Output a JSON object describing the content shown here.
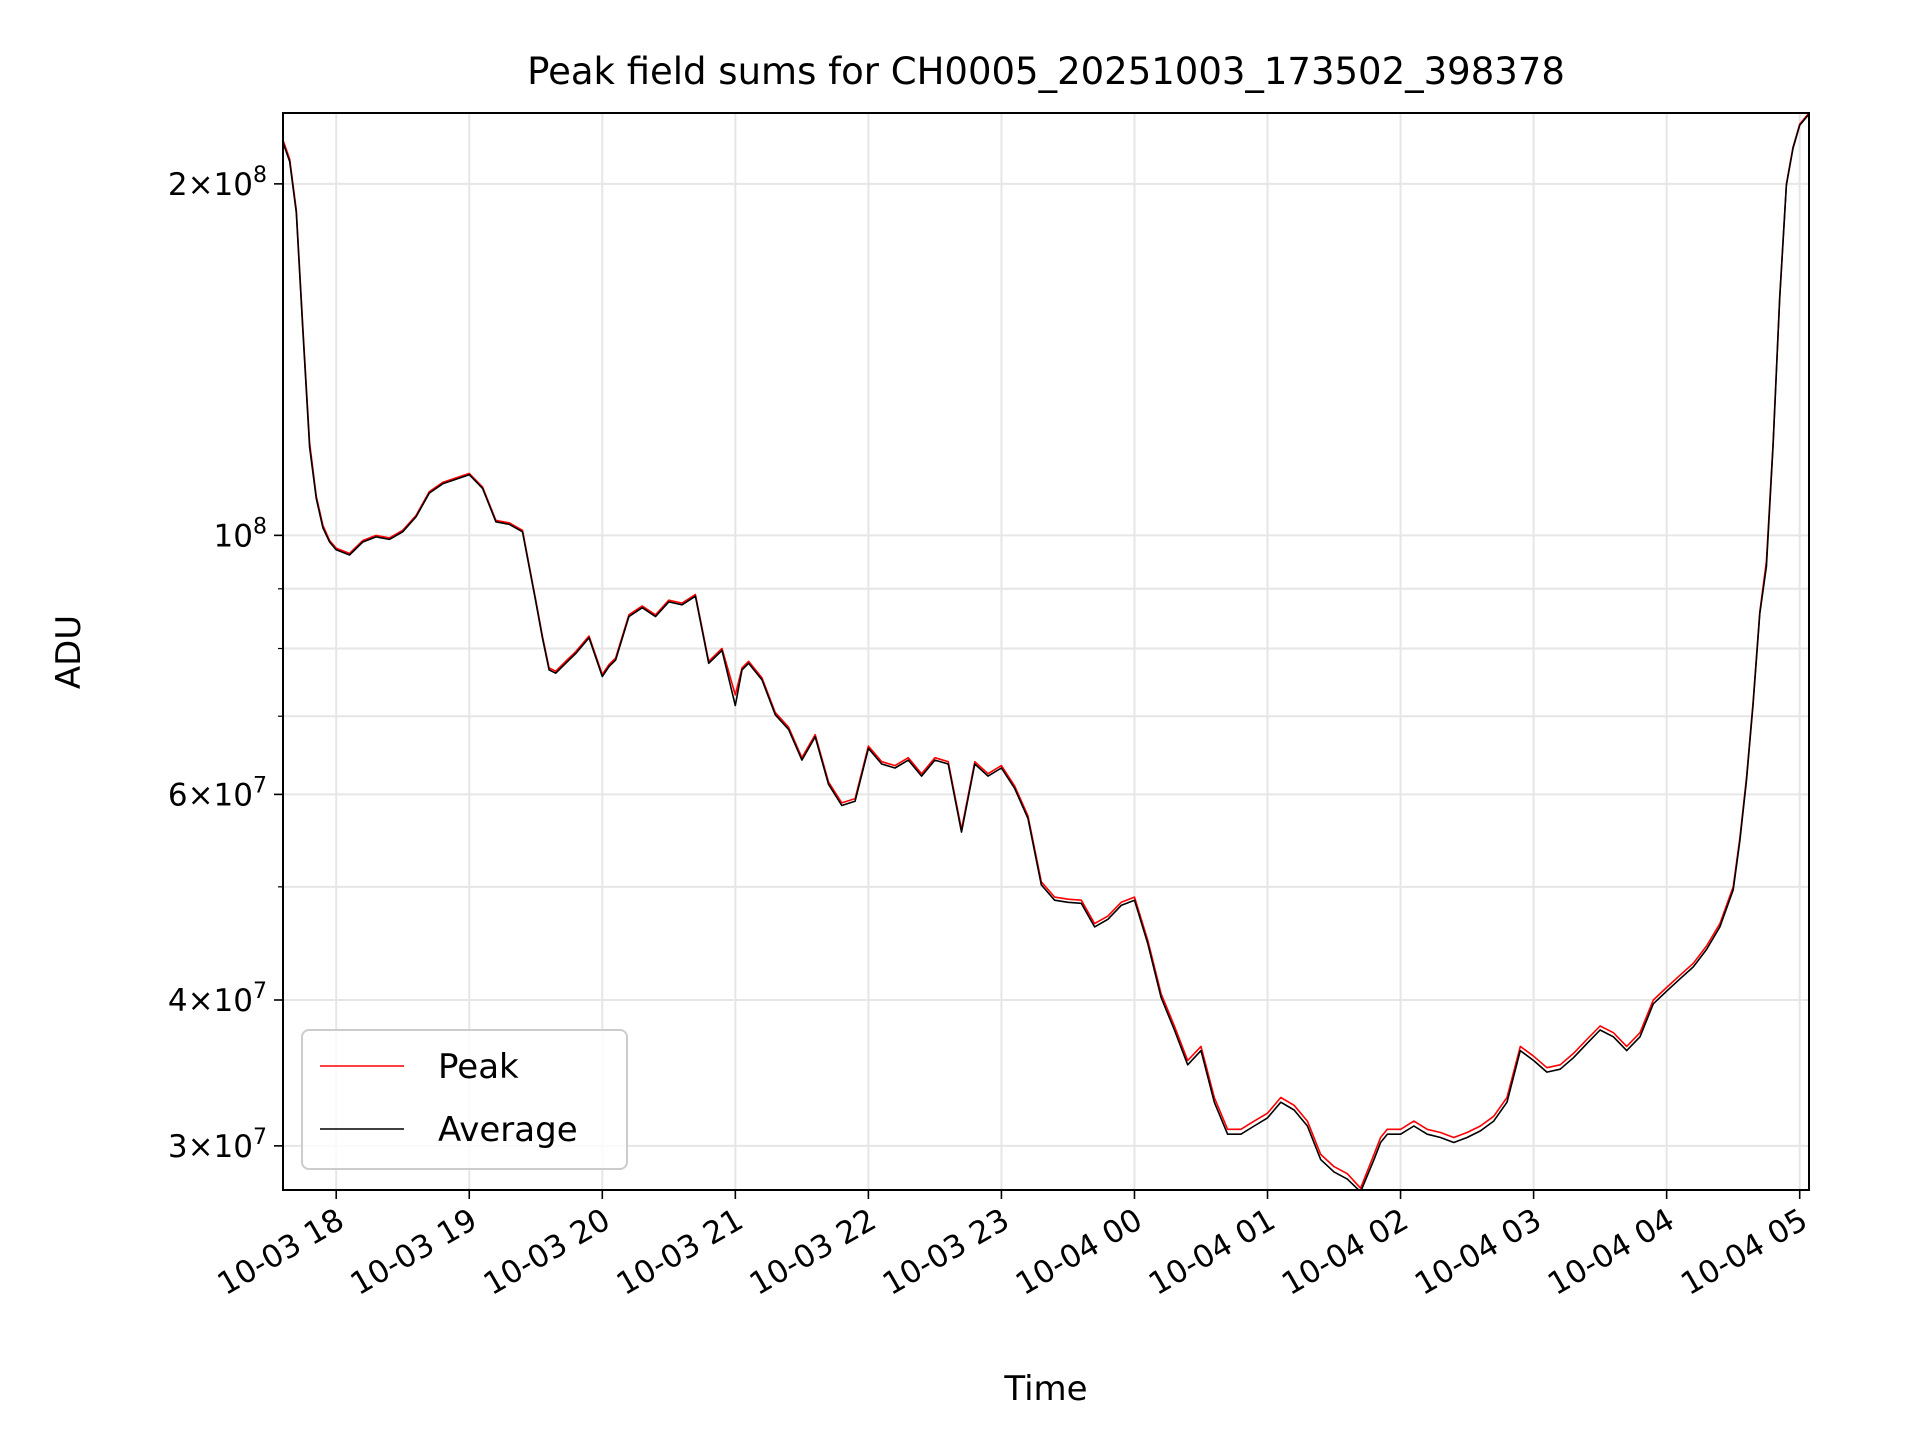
{
  "chart_data": {
    "type": "line",
    "title": "Peak field sums for CH0005_20251003_173502_398378",
    "xlabel": "Time",
    "ylabel": "ADU",
    "yscale": "log",
    "ylim": [
      27500000,
      230000000
    ],
    "xlim_hours": [
      17.6,
      29.07
    ],
    "grid": true,
    "legend_position": "lower-left",
    "colors": {
      "peak": "#ff0000",
      "average": "#000000",
      "grid": "#e6e6e6"
    },
    "x_ticks": [
      {
        "hour": 18,
        "label": "10-03 18"
      },
      {
        "hour": 19,
        "label": "10-03 19"
      },
      {
        "hour": 20,
        "label": "10-03 20"
      },
      {
        "hour": 21,
        "label": "10-03 21"
      },
      {
        "hour": 22,
        "label": "10-03 22"
      },
      {
        "hour": 23,
        "label": "10-03 23"
      },
      {
        "hour": 24,
        "label": "10-04 00"
      },
      {
        "hour": 25,
        "label": "10-04 01"
      },
      {
        "hour": 26,
        "label": "10-04 02"
      },
      {
        "hour": 27,
        "label": "10-04 03"
      },
      {
        "hour": 28,
        "label": "10-04 04"
      },
      {
        "hour": 29,
        "label": "10-04 05"
      }
    ],
    "y_major_ticks": [
      {
        "value": 30000000,
        "mantissa": "3",
        "exp": "7"
      },
      {
        "value": 40000000,
        "mantissa": "4",
        "exp": "7"
      },
      {
        "value": 60000000,
        "mantissa": "6",
        "exp": "7"
      },
      {
        "value": 100000000,
        "mantissa": "",
        "exp": "8"
      },
      {
        "value": 200000000,
        "mantissa": "2",
        "exp": "8"
      }
    ],
    "y_minor_ticks": [
      50000000,
      70000000,
      80000000,
      90000000
    ],
    "series": [
      {
        "name": "Peak",
        "x_hours": [
          17.6,
          17.65,
          17.7,
          17.75,
          17.8,
          17.85,
          17.9,
          17.95,
          18.0,
          18.1,
          18.2,
          18.3,
          18.4,
          18.5,
          18.6,
          18.7,
          18.8,
          18.9,
          19.0,
          19.1,
          19.2,
          19.3,
          19.4,
          19.5,
          19.55,
          19.6,
          19.65,
          19.7,
          19.75,
          19.8,
          19.9,
          20.0,
          20.05,
          20.1,
          20.2,
          20.3,
          20.4,
          20.5,
          20.6,
          20.7,
          20.8,
          20.9,
          21.0,
          21.05,
          21.1,
          21.2,
          21.3,
          21.4,
          21.5,
          21.6,
          21.7,
          21.8,
          21.9,
          22.0,
          22.1,
          22.2,
          22.3,
          22.4,
          22.5,
          22.6,
          22.7,
          22.8,
          22.9,
          23.0,
          23.1,
          23.2,
          23.3,
          23.4,
          23.5,
          23.6,
          23.7,
          23.8,
          23.9,
          24.0,
          24.1,
          24.2,
          24.3,
          24.4,
          24.5,
          24.6,
          24.7,
          24.8,
          24.9,
          25.0,
          25.1,
          25.2,
          25.3,
          25.4,
          25.5,
          25.6,
          25.7,
          25.8,
          25.85,
          25.9,
          26.0,
          26.1,
          26.2,
          26.3,
          26.4,
          26.5,
          26.6,
          26.7,
          26.8,
          26.9,
          27.0,
          27.1,
          27.2,
          27.3,
          27.4,
          27.5,
          27.6,
          27.7,
          27.8,
          27.9,
          28.0,
          28.1,
          28.2,
          28.3,
          28.4,
          28.5,
          28.55,
          28.6,
          28.65,
          28.7,
          28.75,
          28.8,
          28.85,
          28.9,
          28.95,
          29.0,
          29.07
        ],
        "values": [
          218000000,
          210000000,
          190000000,
          150000000,
          120000000,
          108000000,
          102000000,
          99000000,
          97500000,
          96500000,
          99000000,
          100000000,
          99500000,
          101000000,
          104000000,
          109000000,
          111000000,
          112000000,
          113000000,
          110000000,
          103000000,
          102500000,
          101000000,
          88000000,
          82000000,
          77000000,
          76500000,
          77500000,
          78500000,
          79500000,
          82000000,
          76000000,
          77500000,
          78500000,
          85500000,
          87000000,
          85500000,
          88000000,
          87500000,
          89000000,
          78000000,
          80000000,
          73000000,
          77000000,
          78000000,
          75500000,
          70500000,
          68500000,
          64500000,
          67500000,
          61500000,
          59000000,
          59500000,
          66000000,
          64000000,
          63500000,
          64500000,
          62500000,
          64500000,
          64000000,
          56000000,
          64000000,
          62500000,
          63500000,
          61000000,
          57500000,
          50500000,
          49000000,
          48800000,
          48700000,
          46500000,
          47200000,
          48500000,
          49000000,
          45000000,
          40500000,
          38000000,
          35500000,
          36500000,
          33000000,
          31000000,
          31000000,
          31500000,
          32000000,
          33000000,
          32500000,
          31500000,
          29500000,
          28800000,
          28400000,
          27600000,
          29500000,
          30500000,
          31000000,
          31000000,
          31500000,
          31000000,
          30800000,
          30500000,
          30800000,
          31200000,
          31800000,
          33000000,
          36500000,
          35800000,
          35000000,
          35200000,
          36000000,
          37000000,
          38000000,
          37500000,
          36500000,
          37500000,
          40000000,
          41000000,
          42000000,
          43000000,
          44500000,
          46500000,
          50000000,
          55000000,
          62000000,
          72000000,
          86000000,
          95000000,
          120000000,
          160000000,
          200000000,
          215000000,
          225000000,
          230000000
        ]
      },
      {
        "name": "Average",
        "x_hours": [
          17.6,
          17.65,
          17.7,
          17.75,
          17.8,
          17.85,
          17.9,
          17.95,
          18.0,
          18.1,
          18.2,
          18.3,
          18.4,
          18.5,
          18.6,
          18.7,
          18.8,
          18.9,
          19.0,
          19.1,
          19.2,
          19.3,
          19.4,
          19.5,
          19.55,
          19.6,
          19.65,
          19.7,
          19.75,
          19.8,
          19.9,
          20.0,
          20.05,
          20.1,
          20.2,
          20.3,
          20.4,
          20.5,
          20.6,
          20.7,
          20.8,
          20.9,
          21.0,
          21.05,
          21.1,
          21.2,
          21.3,
          21.4,
          21.5,
          21.6,
          21.7,
          21.8,
          21.9,
          22.0,
          22.1,
          22.2,
          22.3,
          22.4,
          22.5,
          22.6,
          22.7,
          22.8,
          22.9,
          23.0,
          23.1,
          23.2,
          23.3,
          23.4,
          23.5,
          23.6,
          23.7,
          23.8,
          23.9,
          24.0,
          24.1,
          24.2,
          24.3,
          24.4,
          24.5,
          24.6,
          24.7,
          24.8,
          24.9,
          25.0,
          25.1,
          25.2,
          25.3,
          25.4,
          25.5,
          25.6,
          25.7,
          25.8,
          25.85,
          25.9,
          26.0,
          26.1,
          26.2,
          26.3,
          26.4,
          26.5,
          26.6,
          26.7,
          26.8,
          26.9,
          27.0,
          27.1,
          27.2,
          27.3,
          27.4,
          27.5,
          27.6,
          27.7,
          27.8,
          27.9,
          28.0,
          28.1,
          28.2,
          28.3,
          28.4,
          28.5,
          28.55,
          28.6,
          28.65,
          28.7,
          28.75,
          28.8,
          28.85,
          28.9,
          28.95,
          29.0,
          29.07
        ],
        "values": [
          217000000,
          209000000,
          189000000,
          149000000,
          119000000,
          107500000,
          101500000,
          98700000,
          97200000,
          96200000,
          98700000,
          99700000,
          99200000,
          100700000,
          103700000,
          108700000,
          110700000,
          111700000,
          112700000,
          109700000,
          102700000,
          102200000,
          100700000,
          87700000,
          81700000,
          76700000,
          76200000,
          77200000,
          78200000,
          79200000,
          81700000,
          75700000,
          77200000,
          78200000,
          85200000,
          86700000,
          85200000,
          87700000,
          87200000,
          88700000,
          77700000,
          79700000,
          71500000,
          76700000,
          77700000,
          75200000,
          70200000,
          68200000,
          64200000,
          67200000,
          61200000,
          58700000,
          59200000,
          65700000,
          63700000,
          63200000,
          64200000,
          62200000,
          64200000,
          63700000,
          55700000,
          63700000,
          62200000,
          63200000,
          60700000,
          57200000,
          50200000,
          48700000,
          48500000,
          48400000,
          46200000,
          46900000,
          48200000,
          48700000,
          44700000,
          40200000,
          37700000,
          35200000,
          36200000,
          32700000,
          30700000,
          30700000,
          31200000,
          31700000,
          32700000,
          32200000,
          31200000,
          29200000,
          28500000,
          28100000,
          27400000,
          29200000,
          30200000,
          30700000,
          30700000,
          31200000,
          30700000,
          30500000,
          30200000,
          30500000,
          30900000,
          31500000,
          32700000,
          36200000,
          35500000,
          34700000,
          34900000,
          35700000,
          36700000,
          37700000,
          37200000,
          36200000,
          37200000,
          39700000,
          40700000,
          41700000,
          42700000,
          44200000,
          46200000,
          49700000,
          54700000,
          61700000,
          71700000,
          85700000,
          94000000,
          119500000,
          159500000,
          199500000,
          214500000,
          224500000,
          229500000
        ]
      }
    ]
  }
}
